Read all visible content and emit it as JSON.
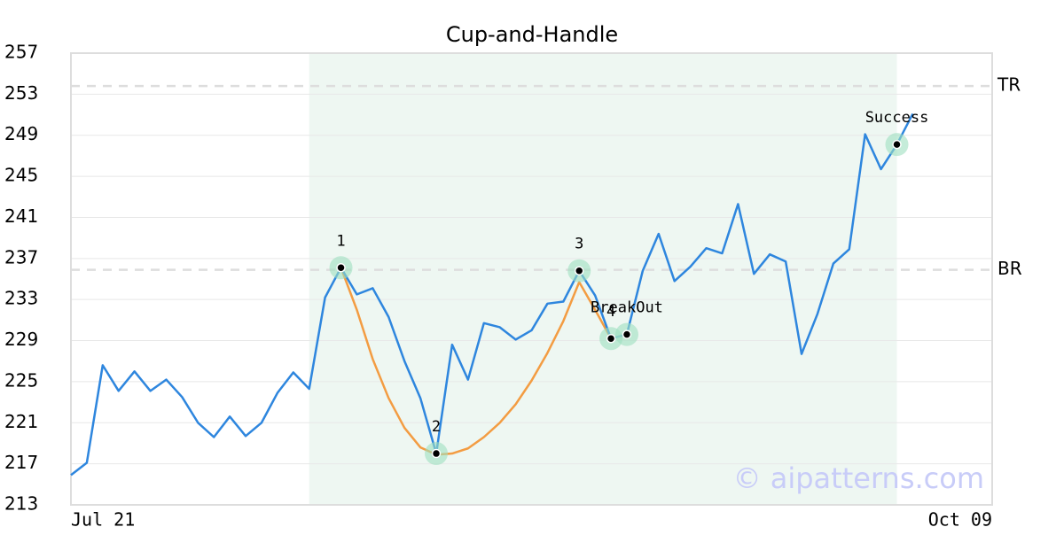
{
  "chart_data": {
    "type": "line",
    "title": "Cup-and-Handle",
    "categories": [
      "Jul 21",
      null,
      null,
      null,
      null,
      null,
      null,
      null,
      null,
      null,
      null,
      null,
      null,
      null,
      null,
      null,
      null,
      null,
      null,
      null,
      null,
      null,
      null,
      null,
      null,
      null,
      null,
      null,
      null,
      null,
      null,
      null,
      null,
      null,
      null,
      null,
      null,
      null,
      null,
      null,
      null,
      null,
      null,
      null,
      null,
      null,
      null,
      null,
      null,
      null,
      null,
      null,
      null,
      null,
      null,
      null,
      null,
      null,
      "Oct 09"
    ],
    "series": [
      {
        "color": "#2e86de",
        "values": [
          215.9,
          217.1,
          226.6,
          224.1,
          226.0,
          224.1,
          225.2,
          223.5,
          221.0,
          219.6,
          221.6,
          219.7,
          221.0,
          223.9,
          225.9,
          224.3,
          233.2,
          236.1,
          233.5,
          234.1,
          231.3,
          227.0,
          223.4,
          218.0,
          228.6,
          225.2,
          230.7,
          230.3,
          229.1,
          230.0,
          232.6,
          232.8,
          235.8,
          233.4,
          229.2,
          229.6,
          235.8,
          239.4,
          234.8,
          236.2,
          238.0,
          237.5,
          242.3,
          235.5,
          237.4,
          236.7,
          227.7,
          231.6,
          236.5,
          237.9,
          249.1,
          245.7,
          248.1,
          251.1,
          null,
          null,
          null,
          null,
          null
        ]
      },
      {
        "color": "#f39c42",
        "values": [
          null,
          null,
          null,
          null,
          null,
          null,
          null,
          null,
          null,
          null,
          null,
          null,
          null,
          null,
          null,
          null,
          null,
          236.1,
          232.0,
          227.2,
          223.4,
          220.5,
          218.6,
          217.9,
          218.0,
          218.5,
          219.6,
          221.0,
          222.8,
          225.1,
          227.8,
          230.9,
          234.7,
          232.0,
          229.2,
          null,
          null,
          null,
          null,
          null,
          null,
          null,
          null,
          null,
          null,
          null,
          null,
          null,
          null,
          null,
          null,
          null,
          null,
          null,
          null,
          null,
          null,
          null,
          null
        ]
      }
    ],
    "annotations": [
      {
        "label": "1",
        "at": 17,
        "value": 236.1
      },
      {
        "label": "2",
        "at": 23,
        "value": 218.0
      },
      {
        "label": "3",
        "at": 32,
        "value": 235.8
      },
      {
        "label": "4",
        "at": 34,
        "value": 229.2
      },
      {
        "label": "BreakOut",
        "at": 35,
        "value": 229.6
      },
      {
        "label": "Success",
        "at": 52,
        "value": 248.1
      }
    ],
    "levels": [
      {
        "label": "TR",
        "value": 253.8
      },
      {
        "label": "BR",
        "value": 235.9
      }
    ],
    "shade": [
      15,
      52
    ],
    "watermark": "© aipatterns.com",
    "ylim": [
      213,
      257
    ],
    "yticks": [
      213,
      217,
      221,
      225,
      229,
      233,
      237,
      241,
      245,
      249,
      253,
      257
    ],
    "grid": true
  }
}
